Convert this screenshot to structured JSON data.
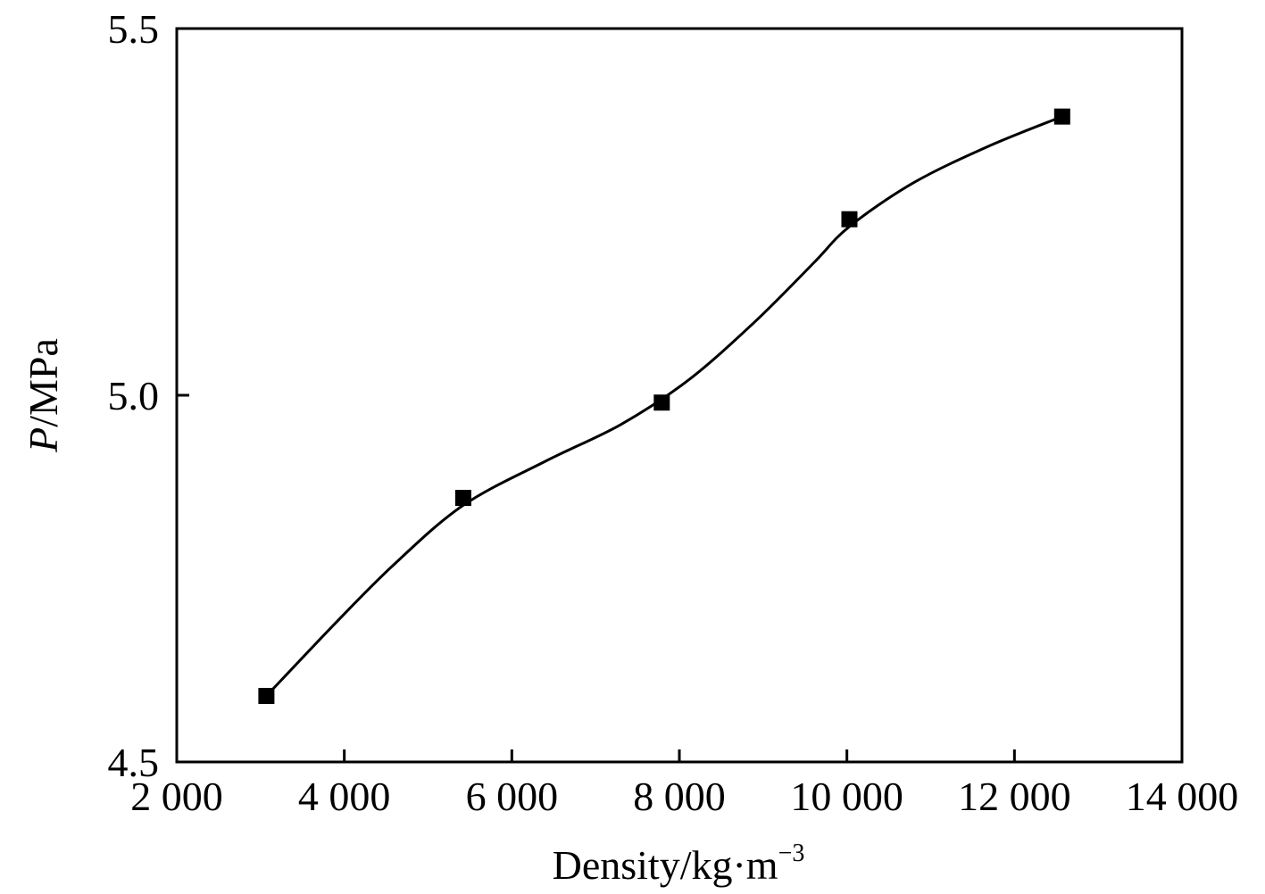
{
  "chart_data": {
    "type": "line",
    "title": "",
    "xlabel": "Density/kg·m",
    "xlabel_superscript": "−3",
    "ylabel_symbol": "P",
    "ylabel_unit": "/MPa",
    "xlim": [
      2000,
      14000
    ],
    "ylim": [
      4.5,
      5.5
    ],
    "x_ticks": [
      2000,
      4000,
      6000,
      8000,
      10000,
      12000,
      14000
    ],
    "x_tick_labels": [
      "2 000",
      "4 000",
      "6 000",
      "8 000",
      "10 000",
      "12 000",
      "14 000"
    ],
    "y_ticks": [
      4.5,
      5.0,
      5.5
    ],
    "y_tick_labels": [
      "4.5",
      "5.0",
      "5.5"
    ],
    "grid": false,
    "legend": "none",
    "series": [
      {
        "marker": "square",
        "color": "#000000",
        "points": [
          {
            "x": 3070,
            "y": 4.59
          },
          {
            "x": 5420,
            "y": 4.86
          },
          {
            "x": 7790,
            "y": 4.99
          },
          {
            "x": 10030,
            "y": 5.24
          },
          {
            "x": 12570,
            "y": 5.38
          }
        ]
      }
    ],
    "fit_curve": {
      "color": "#000000",
      "points": [
        {
          "x": 3070,
          "y": 4.59
        },
        {
          "x": 3900,
          "y": 4.69
        },
        {
          "x": 4600,
          "y": 4.77
        },
        {
          "x": 5420,
          "y": 4.85
        },
        {
          "x": 6400,
          "y": 4.91
        },
        {
          "x": 7300,
          "y": 4.96
        },
        {
          "x": 8100,
          "y": 5.02
        },
        {
          "x": 8900,
          "y": 5.1
        },
        {
          "x": 9600,
          "y": 5.18
        },
        {
          "x": 10030,
          "y": 5.23
        },
        {
          "x": 10800,
          "y": 5.29
        },
        {
          "x": 11700,
          "y": 5.34
        },
        {
          "x": 12570,
          "y": 5.38
        }
      ]
    }
  }
}
